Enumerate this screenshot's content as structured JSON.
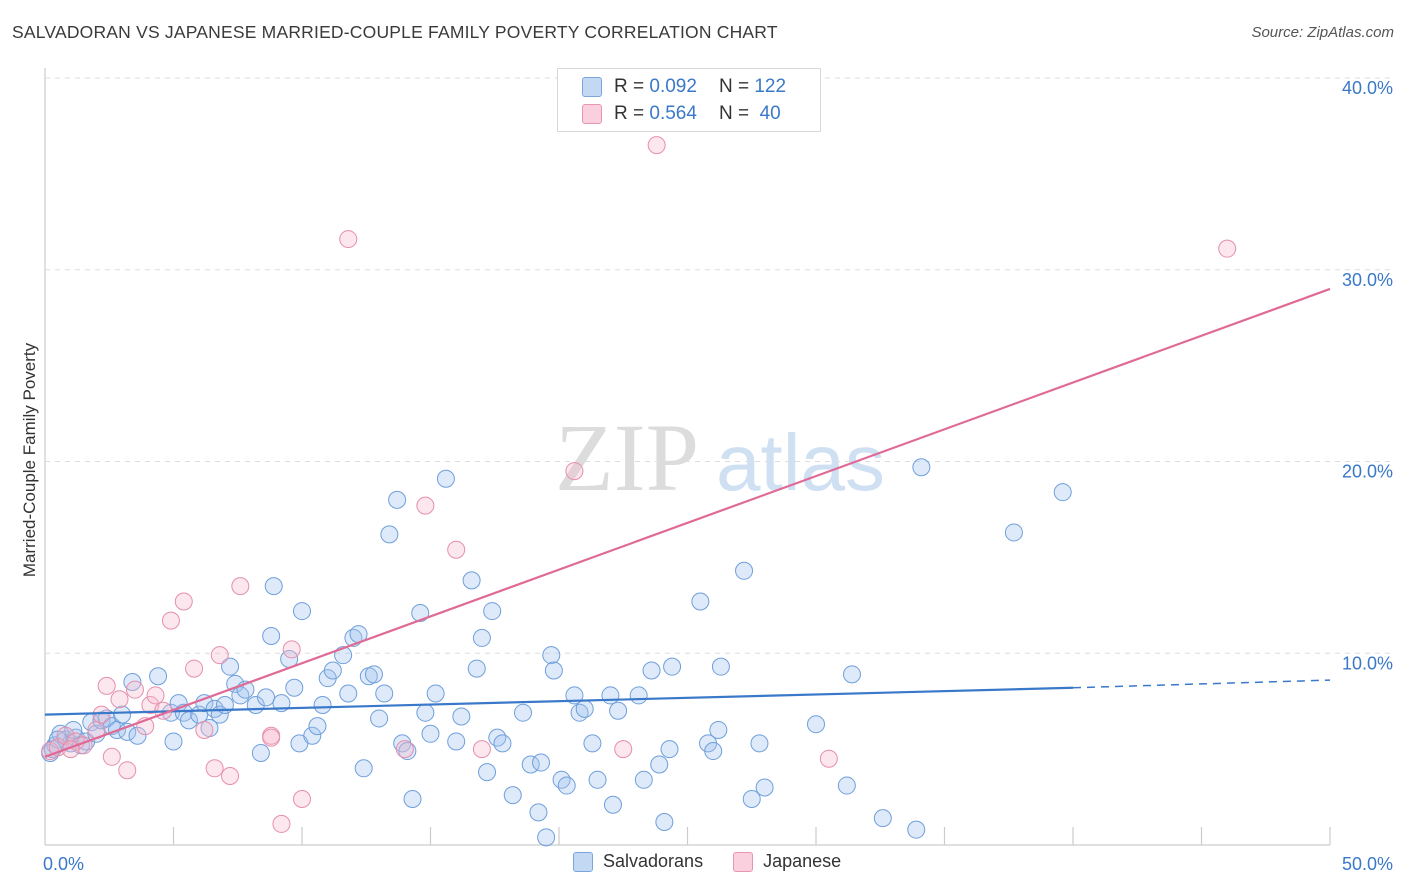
{
  "title": "SALVADORAN VS JAPANESE MARRIED-COUPLE FAMILY POVERTY CORRELATION CHART",
  "source": "Source: ZipAtlas.com",
  "watermark": {
    "zip": "ZIP",
    "atlas": "atlas"
  },
  "legend": {
    "rows": [
      {
        "r_label": "R =",
        "r_value": "0.092",
        "n_label": "N =",
        "n_value": "122",
        "color": "#a9c8ee",
        "border": "#7aa6dd"
      },
      {
        "r_label": "R =",
        "r_value": "0.564",
        "n_label": "N =",
        "n_value": "40",
        "color": "#f7c3d3",
        "border": "#e995b0"
      }
    ]
  },
  "bottom_legend": [
    {
      "label": "Salvadorans",
      "color": "#a9c8ee",
      "border": "#7aa6dd"
    },
    {
      "label": "Japanese",
      "color": "#f7c3d3",
      "border": "#e995b0"
    }
  ],
  "colors": {
    "blue": "#3a78c9",
    "blue_fill": "rgba(150,190,235,0.35)",
    "pink": "#e06a96",
    "pink_fill": "rgba(245,180,200,0.35)"
  },
  "chart_data": {
    "type": "scatter",
    "title": "SALVADORAN VS JAPANESE MARRIED-COUPLE FAMILY POVERTY CORRELATION CHART",
    "xlabel": "",
    "ylabel": "Married-Couple Family Poverty",
    "xlim": [
      0,
      50
    ],
    "ylim": [
      0,
      40
    ],
    "x_tick_labels": [
      "0.0%",
      "50.0%"
    ],
    "y_ticks": [
      10,
      20,
      30,
      40
    ],
    "y_tick_labels": [
      "10.0%",
      "20.0%",
      "30.0%",
      "40.0%"
    ],
    "grid": true,
    "legend_position": "top-center",
    "series": [
      {
        "name": "Salvadorans",
        "trend": {
          "x0": 0,
          "y0": 6.8,
          "x1": 40,
          "y1": 8.2,
          "dashed_to_x": 50,
          "dashed_to_y": 8.6
        },
        "points": [
          [
            0.2,
            4.8
          ],
          [
            0.4,
            5.2
          ],
          [
            0.6,
            5.8
          ],
          [
            0.8,
            5.5
          ],
          [
            1.0,
            5.3
          ],
          [
            1.2,
            5.6
          ],
          [
            1.4,
            5.2
          ],
          [
            1.6,
            5.4
          ],
          [
            1.8,
            6.4
          ],
          [
            2.0,
            5.8
          ],
          [
            2.2,
            6.5
          ],
          [
            2.4,
            6.6
          ],
          [
            2.6,
            6.2
          ],
          [
            2.8,
            6.0
          ],
          [
            3.0,
            6.8
          ],
          [
            3.2,
            5.9
          ],
          [
            3.4,
            8.5
          ],
          [
            3.6,
            5.7
          ],
          [
            4.4,
            8.8
          ],
          [
            4.9,
            6.9
          ],
          [
            5.0,
            5.4
          ],
          [
            5.2,
            7.4
          ],
          [
            5.4,
            6.9
          ],
          [
            5.6,
            6.5
          ],
          [
            6.0,
            6.8
          ],
          [
            6.2,
            7.4
          ],
          [
            6.4,
            6.1
          ],
          [
            6.6,
            7.1
          ],
          [
            6.8,
            6.8
          ],
          [
            7.0,
            7.3
          ],
          [
            7.2,
            9.3
          ],
          [
            7.4,
            8.4
          ],
          [
            7.6,
            7.8
          ],
          [
            7.8,
            8.1
          ],
          [
            8.2,
            7.3
          ],
          [
            8.4,
            4.8
          ],
          [
            8.6,
            7.7
          ],
          [
            8.8,
            10.9
          ],
          [
            8.9,
            13.5
          ],
          [
            9.2,
            7.4
          ],
          [
            9.5,
            9.7
          ],
          [
            9.7,
            8.2
          ],
          [
            9.9,
            5.3
          ],
          [
            10.0,
            12.2
          ],
          [
            10.4,
            5.7
          ],
          [
            10.6,
            6.2
          ],
          [
            10.8,
            7.3
          ],
          [
            11.0,
            8.7
          ],
          [
            11.2,
            9.1
          ],
          [
            11.6,
            9.9
          ],
          [
            11.8,
            7.9
          ],
          [
            12.0,
            10.8
          ],
          [
            12.2,
            11.0
          ],
          [
            12.4,
            4.0
          ],
          [
            12.6,
            8.8
          ],
          [
            12.8,
            8.9
          ],
          [
            13.0,
            6.6
          ],
          [
            13.2,
            7.9
          ],
          [
            13.4,
            16.2
          ],
          [
            13.7,
            18.0
          ],
          [
            13.9,
            5.3
          ],
          [
            14.1,
            4.9
          ],
          [
            14.3,
            2.4
          ],
          [
            14.6,
            12.1
          ],
          [
            14.8,
            6.9
          ],
          [
            15.0,
            5.8
          ],
          [
            15.2,
            7.9
          ],
          [
            15.6,
            19.1
          ],
          [
            16.0,
            5.4
          ],
          [
            16.2,
            6.7
          ],
          [
            16.6,
            13.8
          ],
          [
            16.8,
            9.2
          ],
          [
            17.0,
            10.8
          ],
          [
            17.4,
            12.2
          ],
          [
            17.2,
            3.8
          ],
          [
            17.6,
            5.6
          ],
          [
            17.8,
            5.3
          ],
          [
            18.2,
            2.6
          ],
          [
            18.6,
            6.9
          ],
          [
            18.9,
            4.2
          ],
          [
            19.2,
            1.7
          ],
          [
            19.3,
            4.3
          ],
          [
            19.5,
            0.4
          ],
          [
            19.7,
            9.9
          ],
          [
            19.8,
            9.1
          ],
          [
            20.1,
            3.4
          ],
          [
            20.3,
            3.1
          ],
          [
            20.6,
            7.8
          ],
          [
            20.8,
            6.9
          ],
          [
            21.0,
            7.1
          ],
          [
            21.3,
            5.3
          ],
          [
            21.5,
            3.4
          ],
          [
            22.0,
            7.8
          ],
          [
            22.1,
            2.1
          ],
          [
            22.3,
            7.0
          ],
          [
            23.1,
            7.8
          ],
          [
            23.3,
            3.4
          ],
          [
            23.6,
            9.1
          ],
          [
            24.1,
            1.2
          ],
          [
            23.9,
            4.2
          ],
          [
            24.3,
            5.0
          ],
          [
            24.4,
            9.3
          ],
          [
            25.5,
            12.7
          ],
          [
            25.8,
            5.3
          ],
          [
            26.0,
            4.9
          ],
          [
            26.2,
            6.0
          ],
          [
            26.3,
            9.3
          ],
          [
            27.2,
            14.3
          ],
          [
            27.5,
            2.4
          ],
          [
            27.8,
            5.3
          ],
          [
            28.0,
            3.0
          ],
          [
            30.0,
            6.3
          ],
          [
            31.2,
            3.1
          ],
          [
            31.4,
            8.9
          ],
          [
            32.6,
            1.4
          ],
          [
            33.9,
            0.8
          ],
          [
            34.1,
            19.7
          ],
          [
            37.7,
            16.3
          ],
          [
            39.6,
            18.4
          ],
          [
            0.3,
            5.0
          ],
          [
            0.5,
            5.5
          ],
          [
            1.1,
            6.0
          ]
        ]
      },
      {
        "name": "Japanese",
        "trend": {
          "x0": 0,
          "y0": 4.6,
          "x1": 50,
          "y1": 29.0
        },
        "points": [
          [
            0.2,
            4.9
          ],
          [
            0.5,
            5.1
          ],
          [
            0.8,
            5.7
          ],
          [
            1.2,
            5.4
          ],
          [
            1.5,
            5.2
          ],
          [
            2.0,
            6.0
          ],
          [
            2.2,
            6.8
          ],
          [
            2.4,
            8.3
          ],
          [
            2.6,
            4.6
          ],
          [
            2.9,
            7.6
          ],
          [
            3.2,
            3.9
          ],
          [
            3.5,
            8.1
          ],
          [
            3.9,
            6.2
          ],
          [
            4.1,
            7.3
          ],
          [
            4.3,
            7.8
          ],
          [
            4.6,
            7.0
          ],
          [
            4.9,
            11.7
          ],
          [
            5.4,
            12.7
          ],
          [
            5.8,
            9.2
          ],
          [
            6.2,
            6.0
          ],
          [
            6.6,
            4.0
          ],
          [
            6.8,
            9.9
          ],
          [
            7.2,
            3.6
          ],
          [
            7.6,
            13.5
          ],
          [
            8.8,
            5.7
          ],
          [
            9.2,
            1.1
          ],
          [
            9.6,
            10.2
          ],
          [
            10.0,
            2.4
          ],
          [
            11.8,
            31.6
          ],
          [
            14.0,
            5.0
          ],
          [
            14.8,
            17.7
          ],
          [
            16.0,
            15.4
          ],
          [
            17.0,
            5.0
          ],
          [
            20.6,
            19.5
          ],
          [
            22.5,
            5.0
          ],
          [
            23.8,
            36.5
          ],
          [
            30.5,
            4.5
          ],
          [
            46.0,
            31.1
          ],
          [
            1.0,
            5.0
          ],
          [
            8.8,
            5.6
          ]
        ]
      }
    ]
  }
}
